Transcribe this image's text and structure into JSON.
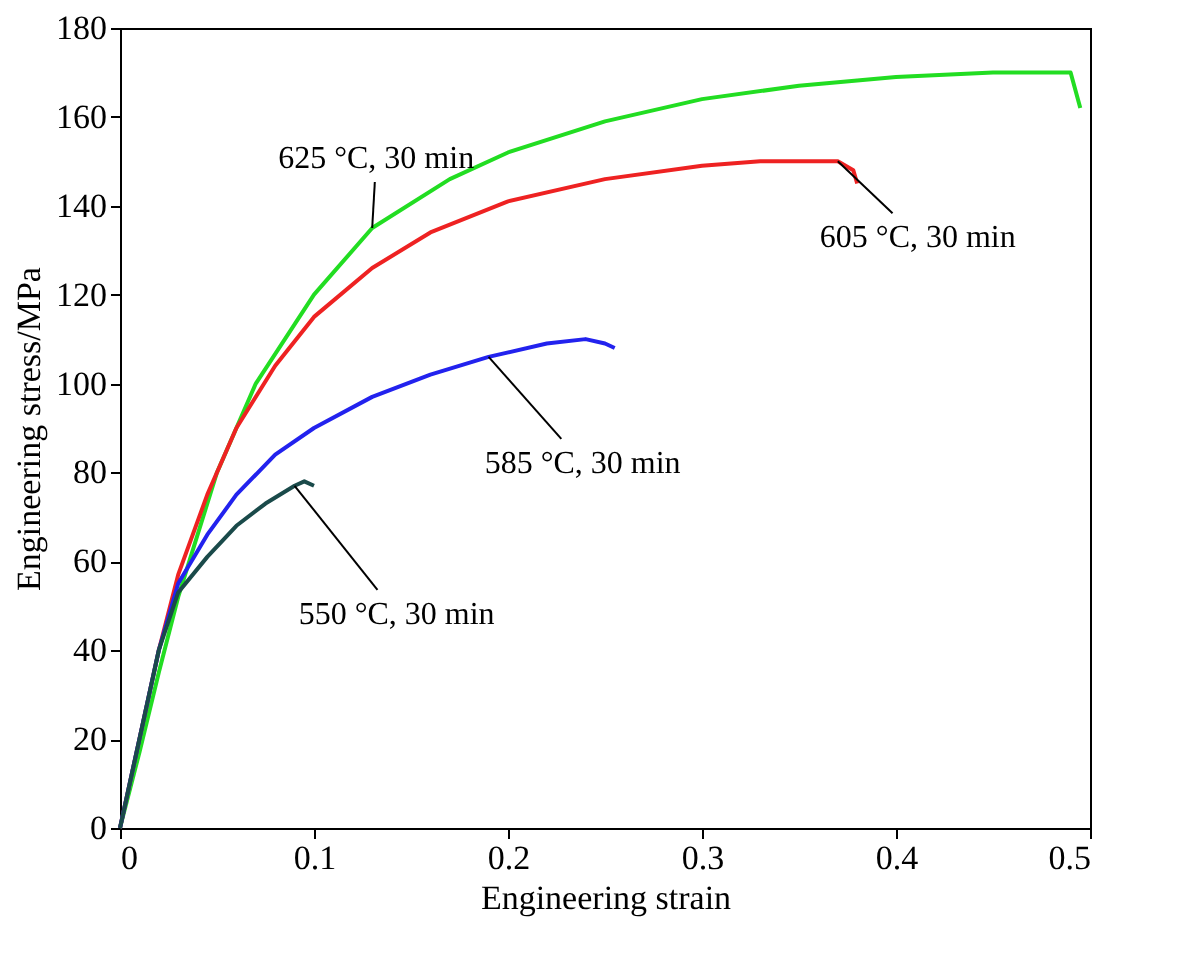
{
  "chart_data": {
    "type": "line",
    "xlabel": "Engineering strain",
    "ylabel": "Engineering stress/MPa",
    "xlim": [
      0,
      0.5
    ],
    "xticks": [
      0,
      0.1,
      0.2,
      0.3,
      0.4,
      0.5
    ],
    "ylim": [
      0,
      180
    ],
    "yticks": [
      0,
      20,
      40,
      60,
      80,
      100,
      120,
      140,
      160,
      180
    ],
    "grid": false,
    "legend": false,
    "marker": "none",
    "line_style": "solid",
    "series": [
      {
        "name": "625 °C, 30 min",
        "color": "#22dd22",
        "x": [
          0,
          0.01,
          0.02,
          0.03,
          0.05,
          0.07,
          0.1,
          0.13,
          0.17,
          0.2,
          0.25,
          0.3,
          0.35,
          0.4,
          0.45,
          0.49,
          0.495
        ],
        "values": [
          0,
          17,
          35,
          52,
          80,
          100,
          120,
          135,
          146,
          152,
          159,
          164,
          167,
          169,
          170,
          170,
          162
        ]
      },
      {
        "name": "605 °C, 30 min",
        "color": "#ee2222",
        "x": [
          0,
          0.01,
          0.02,
          0.03,
          0.045,
          0.06,
          0.08,
          0.1,
          0.13,
          0.16,
          0.2,
          0.25,
          0.3,
          0.33,
          0.37,
          0.378,
          0.38
        ],
        "values": [
          0,
          20,
          40,
          57,
          75,
          90,
          104,
          115,
          126,
          134,
          141,
          146,
          149,
          150,
          150,
          148,
          145
        ]
      },
      {
        "name": "585 °C, 30 min",
        "color": "#2222ee",
        "x": [
          0,
          0.01,
          0.02,
          0.03,
          0.045,
          0.06,
          0.08,
          0.1,
          0.13,
          0.16,
          0.19,
          0.22,
          0.24,
          0.25,
          0.255
        ],
        "values": [
          0,
          20,
          40,
          55,
          66,
          75,
          84,
          90,
          97,
          102,
          106,
          109,
          110,
          109,
          108
        ]
      },
      {
        "name": "550 °C, 30 min",
        "color": "#1a4a4a",
        "x": [
          0,
          0.01,
          0.02,
          0.03,
          0.045,
          0.06,
          0.075,
          0.09,
          0.095,
          0.1
        ],
        "values": [
          0,
          20,
          40,
          53,
          61,
          68,
          73,
          77,
          78,
          77
        ]
      }
    ]
  }
}
